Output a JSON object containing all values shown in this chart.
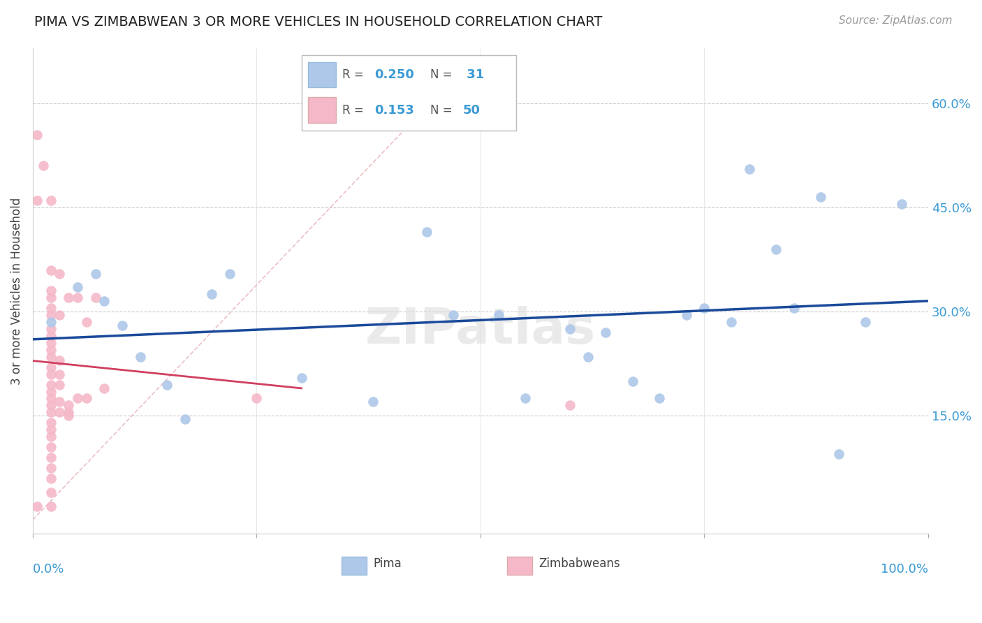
{
  "title": "PIMA VS ZIMBABWEAN 3 OR MORE VEHICLES IN HOUSEHOLD CORRELATION CHART",
  "source": "Source: ZipAtlas.com",
  "ylabel": "3 or more Vehicles in Household",
  "ytick_values": [
    0.15,
    0.3,
    0.45,
    0.6
  ],
  "xlim": [
    0.0,
    1.0
  ],
  "ylim": [
    -0.02,
    0.68
  ],
  "watermark": "ZIPatlas",
  "pima_color": "#adc8e8",
  "zimbabweans_color": "#f5b8c8",
  "pima_line_color": "#1a4a9a",
  "zimbabweans_line_color": "#d04060",
  "zimbabweans_dashed_color": "#e8b0b8",
  "pima_R": 0.25,
  "pima_N": 31,
  "zimbabweans_R": 0.153,
  "zimbabweans_N": 50,
  "pima_scatter": [
    [
      0.02,
      0.285
    ],
    [
      0.05,
      0.335
    ],
    [
      0.07,
      0.355
    ],
    [
      0.08,
      0.315
    ],
    [
      0.1,
      0.28
    ],
    [
      0.12,
      0.235
    ],
    [
      0.15,
      0.195
    ],
    [
      0.17,
      0.145
    ],
    [
      0.2,
      0.325
    ],
    [
      0.22,
      0.355
    ],
    [
      0.3,
      0.205
    ],
    [
      0.38,
      0.17
    ],
    [
      0.44,
      0.415
    ],
    [
      0.47,
      0.295
    ],
    [
      0.52,
      0.295
    ],
    [
      0.55,
      0.175
    ],
    [
      0.6,
      0.275
    ],
    [
      0.62,
      0.235
    ],
    [
      0.64,
      0.27
    ],
    [
      0.67,
      0.2
    ],
    [
      0.7,
      0.175
    ],
    [
      0.73,
      0.295
    ],
    [
      0.75,
      0.305
    ],
    [
      0.78,
      0.285
    ],
    [
      0.8,
      0.505
    ],
    [
      0.83,
      0.39
    ],
    [
      0.85,
      0.305
    ],
    [
      0.88,
      0.465
    ],
    [
      0.9,
      0.095
    ],
    [
      0.93,
      0.285
    ],
    [
      0.97,
      0.455
    ]
  ],
  "zimbabweans_scatter": [
    [
      0.005,
      0.555
    ],
    [
      0.012,
      0.51
    ],
    [
      0.02,
      0.46
    ],
    [
      0.02,
      0.36
    ],
    [
      0.02,
      0.33
    ],
    [
      0.02,
      0.32
    ],
    [
      0.02,
      0.305
    ],
    [
      0.02,
      0.295
    ],
    [
      0.02,
      0.275
    ],
    [
      0.02,
      0.265
    ],
    [
      0.02,
      0.255
    ],
    [
      0.02,
      0.245
    ],
    [
      0.02,
      0.235
    ],
    [
      0.02,
      0.22
    ],
    [
      0.02,
      0.21
    ],
    [
      0.02,
      0.195
    ],
    [
      0.02,
      0.185
    ],
    [
      0.02,
      0.175
    ],
    [
      0.02,
      0.165
    ],
    [
      0.02,
      0.155
    ],
    [
      0.02,
      0.14
    ],
    [
      0.02,
      0.13
    ],
    [
      0.02,
      0.12
    ],
    [
      0.02,
      0.105
    ],
    [
      0.02,
      0.09
    ],
    [
      0.02,
      0.075
    ],
    [
      0.02,
      0.06
    ],
    [
      0.02,
      0.04
    ],
    [
      0.02,
      0.02
    ],
    [
      0.03,
      0.355
    ],
    [
      0.03,
      0.295
    ],
    [
      0.03,
      0.23
    ],
    [
      0.03,
      0.21
    ],
    [
      0.03,
      0.195
    ],
    [
      0.03,
      0.17
    ],
    [
      0.03,
      0.155
    ],
    [
      0.04,
      0.32
    ],
    [
      0.04,
      0.165
    ],
    [
      0.04,
      0.155
    ],
    [
      0.04,
      0.15
    ],
    [
      0.05,
      0.32
    ],
    [
      0.05,
      0.175
    ],
    [
      0.06,
      0.285
    ],
    [
      0.06,
      0.175
    ],
    [
      0.07,
      0.32
    ],
    [
      0.08,
      0.19
    ],
    [
      0.25,
      0.175
    ],
    [
      0.005,
      0.02
    ],
    [
      0.6,
      0.165
    ],
    [
      0.005,
      0.46
    ]
  ]
}
